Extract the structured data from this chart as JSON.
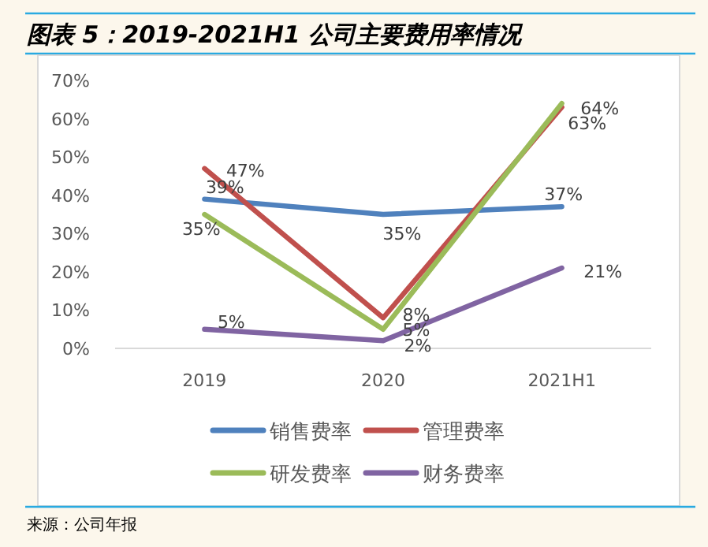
{
  "chart_data": {
    "type": "line",
    "title": "图表 5：2019-2021H1 公司主要费用率情况",
    "categories": [
      "2019",
      "2020",
      "2021H1"
    ],
    "series": [
      {
        "name": "销售费率",
        "color": "#4f81bd",
        "values": [
          39,
          35,
          37
        ],
        "value_labels": [
          "39%",
          "35%",
          "37%"
        ]
      },
      {
        "name": "管理费率",
        "color": "#c0504d",
        "values": [
          47,
          8,
          63
        ],
        "value_labels": [
          "47%",
          "8%",
          "63%"
        ]
      },
      {
        "name": "研发费率",
        "color": "#9bbb59",
        "values": [
          35,
          5,
          64
        ],
        "value_labels": [
          "35%",
          "5%",
          "64%"
        ]
      },
      {
        "name": "财务费率",
        "color": "#8064a2",
        "values": [
          5,
          2,
          21
        ],
        "value_labels": [
          "5%",
          "2%",
          "21%"
        ]
      }
    ],
    "ylim": [
      0,
      70
    ],
    "yticks": [
      {
        "value": 0,
        "label": "0%"
      },
      {
        "value": 10,
        "label": "10%"
      },
      {
        "value": 20,
        "label": "20%"
      },
      {
        "value": 30,
        "label": "30%"
      },
      {
        "value": 40,
        "label": "40%"
      },
      {
        "value": 50,
        "label": "50%"
      },
      {
        "value": 60,
        "label": "60%"
      },
      {
        "value": 70,
        "label": "70%"
      }
    ],
    "grid": false,
    "legend": "bottom",
    "marker": "none",
    "line_style": "solid",
    "annotations": [
      "来源：公司年报"
    ]
  }
}
